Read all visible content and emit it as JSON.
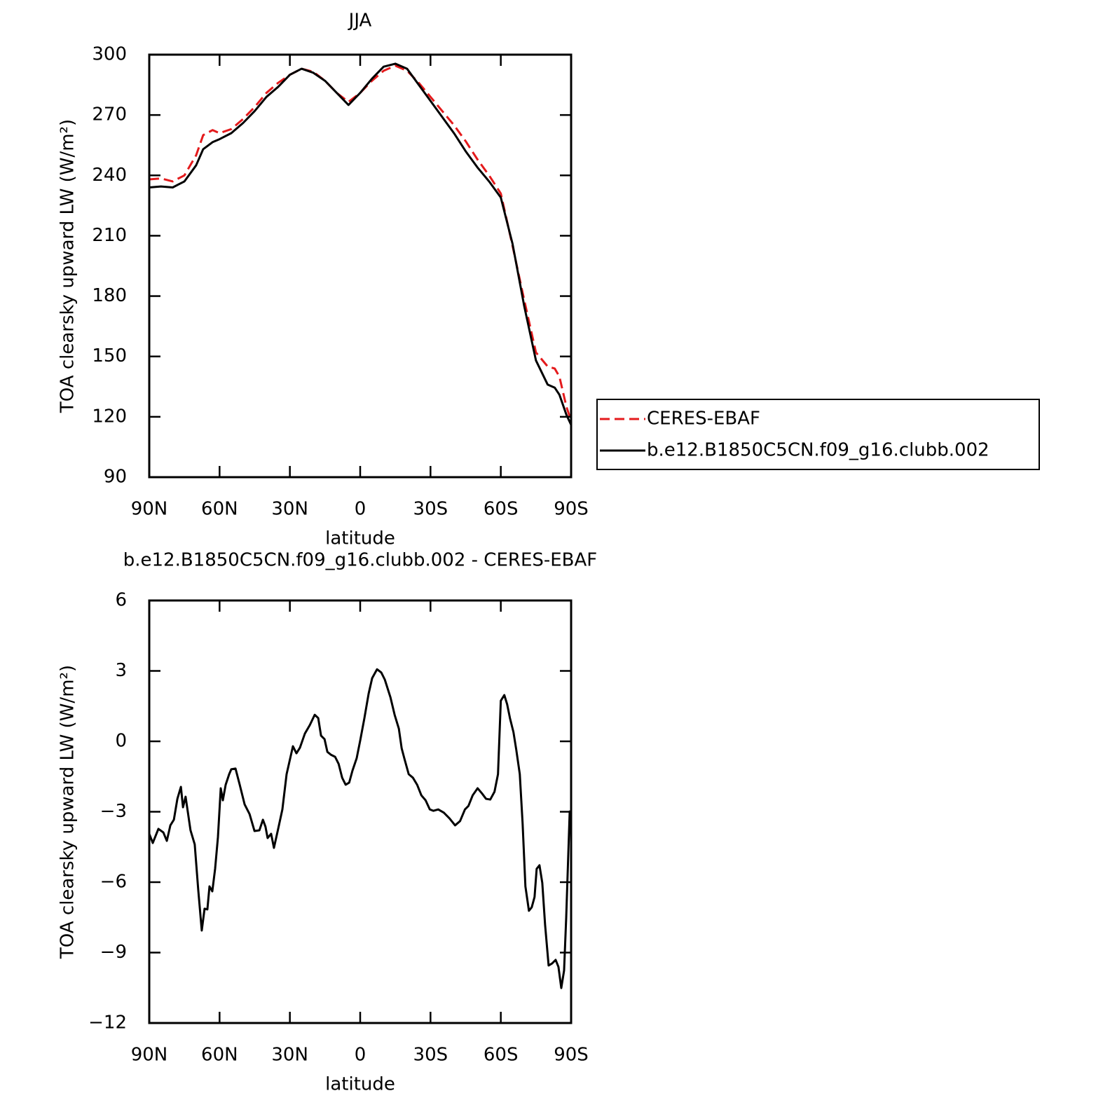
{
  "chart_data": [
    {
      "type": "line",
      "title": "JJA",
      "xlabel": "latitude",
      "ylabel": "TOA clearsky upward LW (W/m²)",
      "xlim": [
        90,
        -90
      ],
      "xticks": [
        {
          "value": 90,
          "label": "90N"
        },
        {
          "value": 60,
          "label": "60N"
        },
        {
          "value": 30,
          "label": "30N"
        },
        0,
        {
          "value": -30,
          "label": "30S"
        },
        {
          "value": -60,
          "label": "60S"
        },
        {
          "value": -90,
          "label": "90S"
        }
      ],
      "ylim": [
        90,
        300
      ],
      "yticks": [
        90,
        120,
        150,
        180,
        210,
        240,
        270,
        300
      ],
      "legend": "right",
      "x": [
        90,
        85,
        80,
        75,
        70,
        67,
        63,
        60,
        55,
        50,
        45,
        40,
        35,
        30,
        25,
        20,
        15,
        10,
        5,
        0,
        -5,
        -10,
        -15,
        -20,
        -25,
        -30,
        -35,
        -40,
        -45,
        -50,
        -55,
        -60,
        -65,
        -70,
        -75,
        -80,
        -83,
        -85,
        -88,
        -90
      ],
      "series": [
        {
          "name": "CERES-EBAF",
          "color": "#e41a1c",
          "dashed": true,
          "values": [
            238,
            238.5,
            237,
            240,
            250,
            260,
            262.5,
            261,
            263,
            268,
            274,
            281,
            286,
            290,
            293,
            291.5,
            287,
            281,
            276.5,
            281,
            287,
            292,
            294.5,
            292,
            286,
            279,
            272,
            265,
            257,
            248,
            240,
            231,
            205,
            178,
            152,
            145,
            144,
            140,
            125,
            118
          ]
        },
        {
          "name": "b.e12.B1850C5CN.f09_g16.clubb.002",
          "color": "#000000",
          "dashed": false,
          "values": [
            234,
            234.5,
            234,
            237,
            245,
            253,
            256.5,
            258,
            261,
            266,
            272,
            279,
            284,
            290,
            293,
            291,
            287,
            281,
            275,
            281,
            288,
            294,
            295.5,
            293,
            285,
            277,
            269,
            261,
            252,
            244,
            237,
            229,
            206,
            175,
            148,
            136,
            134.5,
            131,
            121,
            116
          ]
        }
      ]
    },
    {
      "type": "line",
      "title": "b.e12.B1850C5CN.f09_g16.clubb.002 - CERES-EBAF",
      "xlabel": "latitude",
      "ylabel": "TOA clearsky upward LW (W/m²)",
      "xlim": [
        90,
        -90
      ],
      "xticks": [
        {
          "value": 90,
          "label": "90N"
        },
        {
          "value": 60,
          "label": "60N"
        },
        {
          "value": 30,
          "label": "30N"
        },
        0,
        {
          "value": -30,
          "label": "30S"
        },
        {
          "value": -60,
          "label": "60S"
        },
        {
          "value": -90,
          "label": "90S"
        }
      ],
      "ylim": [
        -12,
        6
      ],
      "yticks": [
        {
          "value": -12,
          "label": "−12"
        },
        {
          "value": -9,
          "label": "−9"
        },
        {
          "value": -6,
          "label": "−6"
        },
        {
          "value": -3,
          "label": "−3"
        },
        0,
        3,
        6
      ],
      "x": [
        90,
        88.5,
        86.1,
        84,
        82.5,
        81,
        79.5,
        78,
        76.5,
        75.6,
        74.5,
        72.4,
        70.6,
        69.1,
        67.6,
        66.4,
        65.2,
        64.3,
        63.1,
        61.9,
        60.7,
        59.5,
        58.6,
        57.4,
        55.9,
        55,
        53.2,
        51.4,
        49.3,
        47.2,
        45.1,
        43,
        41.5,
        40.4,
        39.5,
        38,
        36.8,
        35,
        33.2,
        31.4,
        28.7,
        27.2,
        25.7,
        23.6,
        21.5,
        19.4,
        17.9,
        16.7,
        15.2,
        14,
        12.5,
        10.7,
        9.2,
        7.7,
        6.2,
        4.7,
        3.3,
        1.5,
        0,
        -1.8,
        -3.6,
        -5.1,
        -7.2,
        -9,
        -10.5,
        -12.9,
        -14.7,
        -16.5,
        -17.7,
        -18.9,
        -20.7,
        -22.5,
        -24.3,
        -26.1,
        -27.9,
        -29.7,
        -31.2,
        -33.3,
        -35.7,
        -38.1,
        -40.5,
        -42.6,
        -44.7,
        -46.2,
        -48,
        -50.1,
        -51.9,
        -53.7,
        -55.5,
        -57.3,
        -58.8,
        -60,
        -61.5,
        -62.7,
        -63.9,
        -65.4,
        -66.6,
        -68.1,
        -69.3,
        -70.5,
        -72,
        -73.2,
        -74.4,
        -75.3,
        -76.5,
        -77.7,
        -78.9,
        -80.4,
        -81.9,
        -83.4,
        -84.6,
        -85.8,
        -87,
        -87.9,
        -89.4,
        -90
      ],
      "series": [
        {
          "color": "#000000",
          "dashed": false,
          "values": [
            -3.94,
            -4.33,
            -3.73,
            -3.88,
            -4.24,
            -3.58,
            -3.34,
            -2.45,
            -1.94,
            -2.81,
            -2.36,
            -3.79,
            -4.39,
            -6.33,
            -8.06,
            -7.13,
            -7.16,
            -6.18,
            -6.39,
            -5.43,
            -4.09,
            -2.0,
            -2.51,
            -1.85,
            -1.4,
            -1.19,
            -1.16,
            -1.85,
            -2.69,
            -3.1,
            -3.82,
            -3.79,
            -3.34,
            -3.64,
            -4.12,
            -3.94,
            -4.54,
            -3.73,
            -2.9,
            -1.4,
            -0.21,
            -0.51,
            -0.27,
            0.33,
            0.69,
            1.13,
            0.99,
            0.24,
            0.09,
            -0.45,
            -0.57,
            -0.66,
            -0.96,
            -1.55,
            -1.85,
            -1.76,
            -1.25,
            -0.72,
            0.03,
            0.99,
            2.03,
            2.69,
            3.07,
            2.93,
            2.63,
            1.88,
            1.13,
            0.54,
            -0.3,
            -0.75,
            -1.4,
            -1.55,
            -1.85,
            -2.3,
            -2.51,
            -2.9,
            -2.96,
            -2.9,
            -3.04,
            -3.28,
            -3.58,
            -3.4,
            -2.9,
            -2.75,
            -2.3,
            -2.0,
            -2.21,
            -2.45,
            -2.48,
            -2.15,
            -1.4,
            1.73,
            1.97,
            1.58,
            0.99,
            0.39,
            -0.36,
            -1.4,
            -3.49,
            -6.18,
            -7.22,
            -7.07,
            -6.63,
            -5.43,
            -5.28,
            -6.03,
            -7.82,
            -9.55,
            -9.46,
            -9.31,
            -9.61,
            -10.51,
            -9.76,
            -7.52,
            -2.99,
            -3.58
          ]
        }
      ]
    }
  ]
}
